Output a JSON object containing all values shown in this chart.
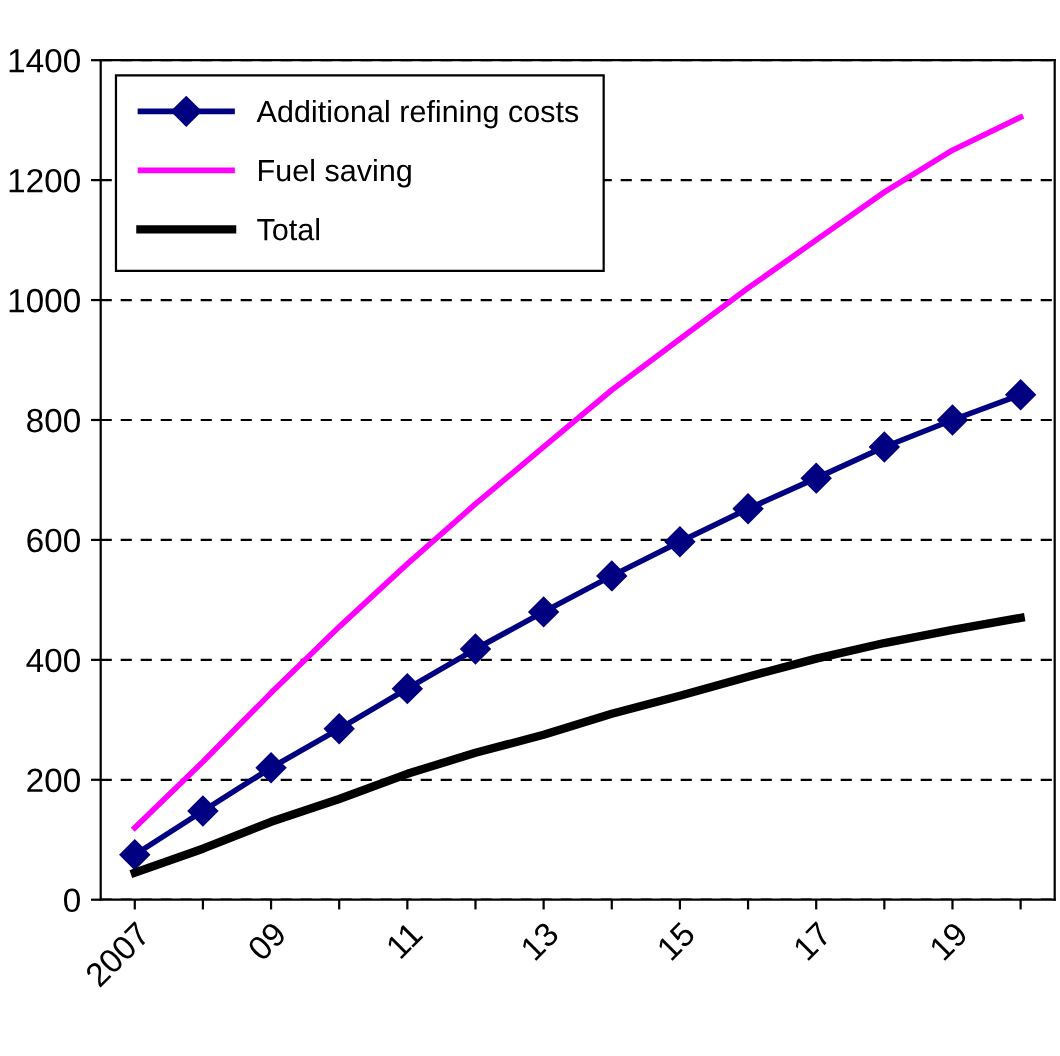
{
  "chart_data": {
    "type": "line",
    "categories": [
      "2007",
      null,
      "09",
      null,
      "11",
      null,
      "13",
      null,
      "15",
      null,
      "17",
      null,
      "19",
      null
    ],
    "series": [
      {
        "name": "Additional refining costs",
        "color": "#000080",
        "marker": "diamond",
        "values": [
          75,
          148,
          220,
          285,
          352,
          418,
          480,
          540,
          597,
          652,
          703,
          755,
          800,
          842
        ]
      },
      {
        "name": "Fuel saving",
        "color": "#ff00ff",
        "values": [
          120,
          230,
          345,
          455,
          560,
          660,
          755,
          850,
          935,
          1020,
          1100,
          1180,
          1250,
          1305
        ]
      },
      {
        "name": "Total",
        "color": "#000000",
        "values": [
          45,
          85,
          130,
          168,
          210,
          245,
          275,
          310,
          340,
          372,
          402,
          428,
          450,
          470
        ]
      }
    ],
    "ylim": [
      0,
      1400
    ],
    "yticks": [
      0,
      200,
      400,
      600,
      800,
      1000,
      1200,
      1400
    ],
    "grid": "y",
    "legend": "top left"
  }
}
